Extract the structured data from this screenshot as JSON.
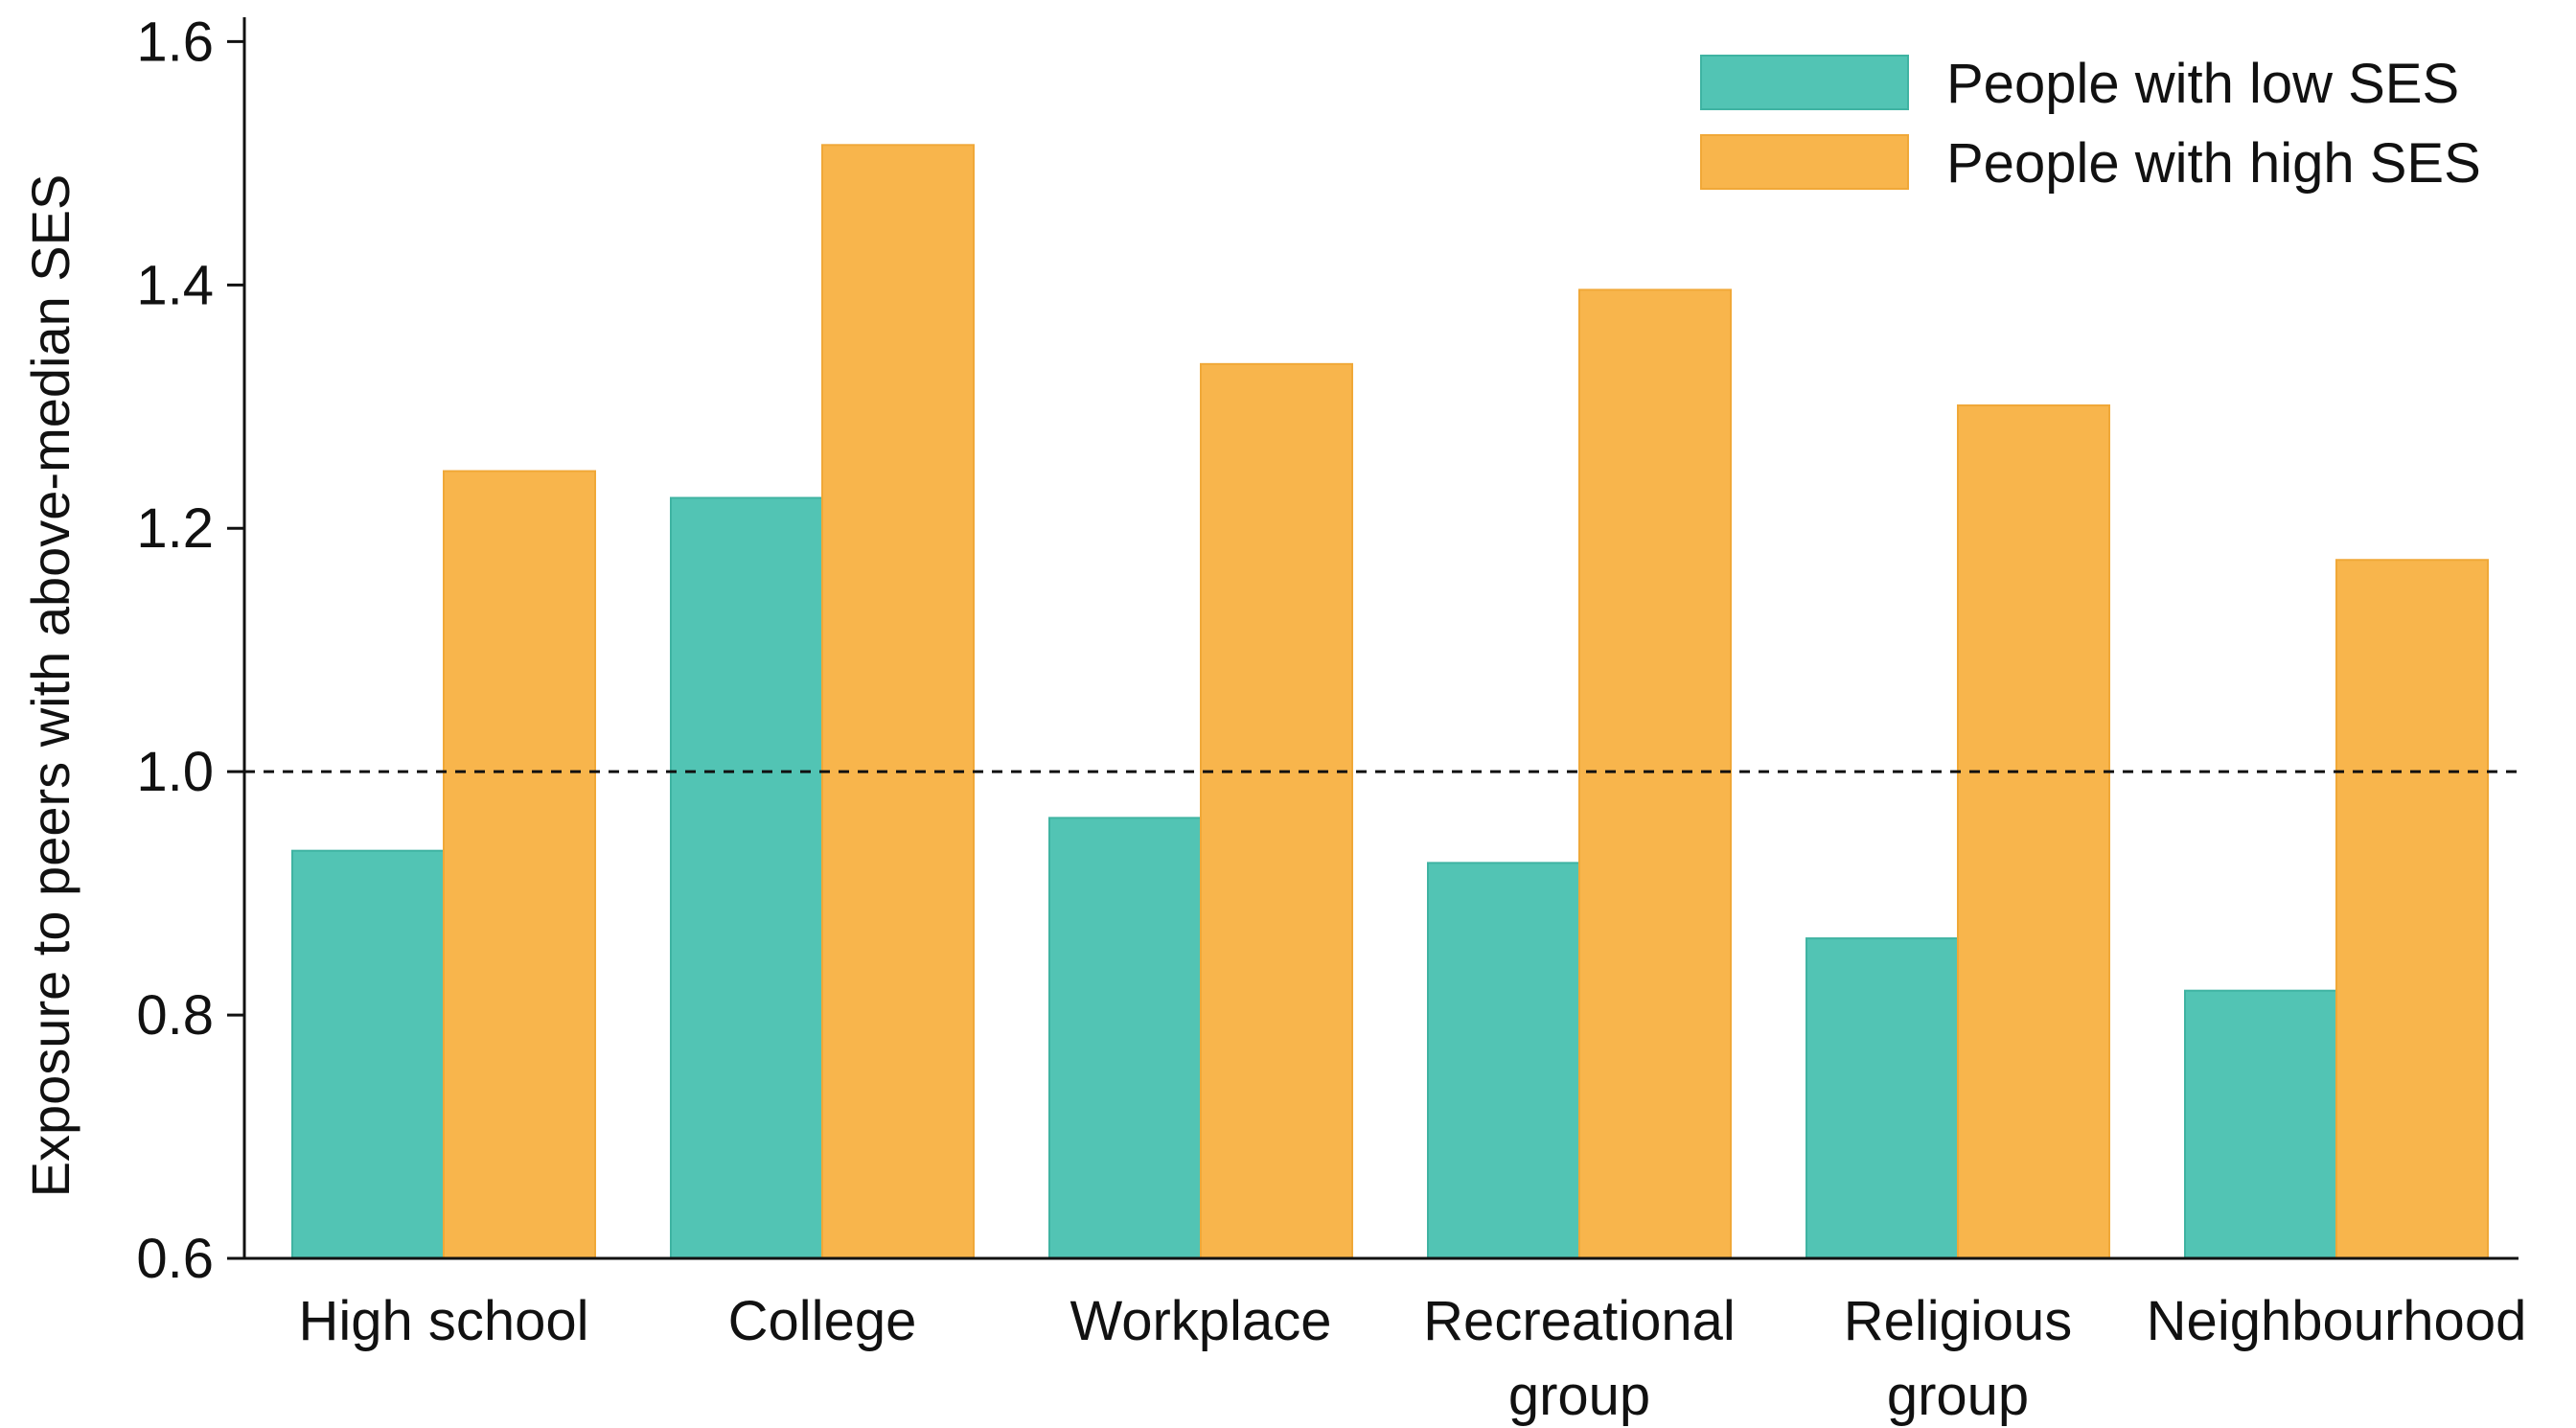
{
  "chart_data": {
    "type": "bar",
    "title": "",
    "xlabel": "",
    "ylabel": "Exposure to peers with above-median SES",
    "ylim": [
      0.6,
      1.62
    ],
    "yticks": [
      "0.6",
      "0.8",
      "1.0",
      "1.2",
      "1.4",
      "1.6"
    ],
    "reference_line": 1.0,
    "legend_position": "top-right",
    "grid": false,
    "categories": [
      [
        "High school"
      ],
      [
        "College"
      ],
      [
        "Workplace"
      ],
      [
        "Recreational",
        "group"
      ],
      [
        "Religious",
        "group"
      ],
      [
        "Neighbourhood"
      ]
    ],
    "series": [
      {
        "name": "People with low SES",
        "color": "#52c4b4",
        "values": [
          0.935,
          1.225,
          0.962,
          0.925,
          0.863,
          0.82
        ]
      },
      {
        "name": "People with high SES",
        "color": "#f8b54c",
        "values": [
          1.247,
          1.515,
          1.335,
          1.396,
          1.301,
          1.174
        ]
      }
    ]
  }
}
